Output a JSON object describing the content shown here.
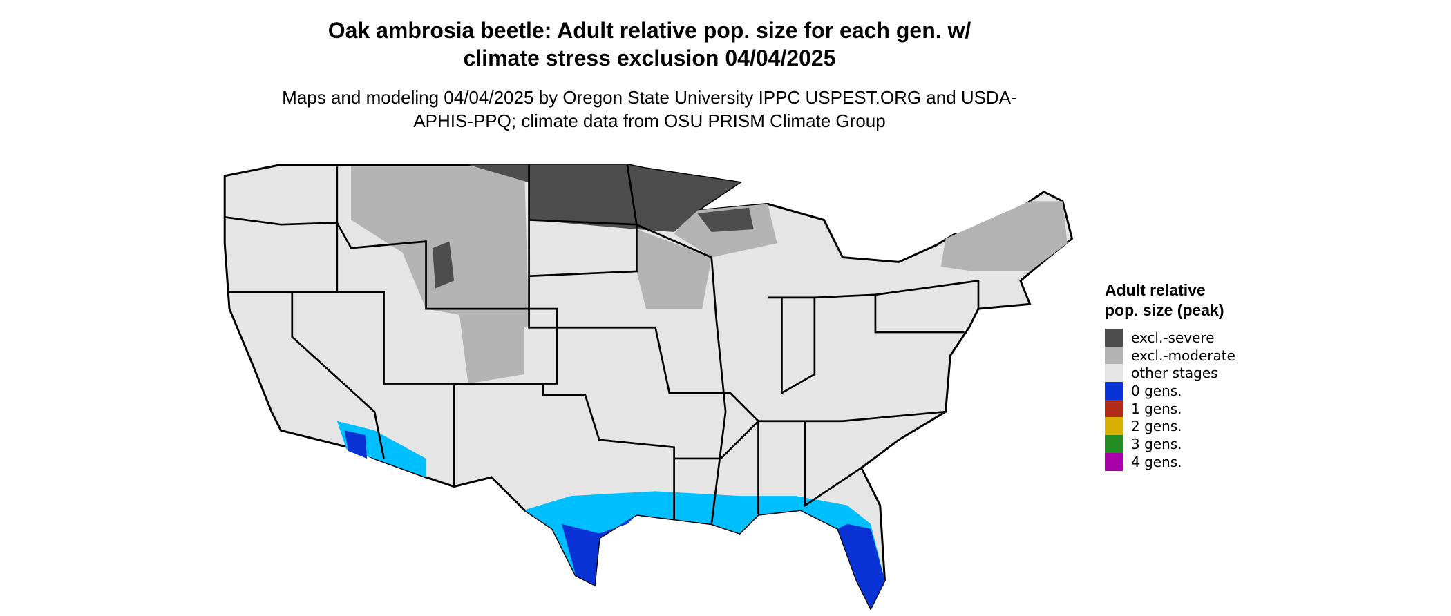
{
  "title": "Oak ambrosia beetle: Adult relative pop. size for each gen. w/ climate stress exclusion 04/04/2025",
  "subtitle": "Maps and modeling 04/04/2025 by Oregon State University IPPC USPEST.ORG and USDA-APHIS-PPQ; climate data from OSU PRISM Climate Group",
  "legend": {
    "title": "Adult relative pop. size (peak)",
    "items": [
      {
        "label": "excl.-severe",
        "color": "#4d4d4d"
      },
      {
        "label": "excl.-moderate",
        "color": "#b3b3b3"
      },
      {
        "label": "other stages",
        "color": "#e5e5e5"
      },
      {
        "label": "0 gens.",
        "color": "#0a33d6"
      },
      {
        "label": "1 gens.",
        "color": "#b22a18"
      },
      {
        "label": "2 gens.",
        "color": "#d8b000"
      },
      {
        "label": "3 gens.",
        "color": "#228b22"
      },
      {
        "label": "4 gens.",
        "color": "#aa00aa"
      }
    ]
  }
}
